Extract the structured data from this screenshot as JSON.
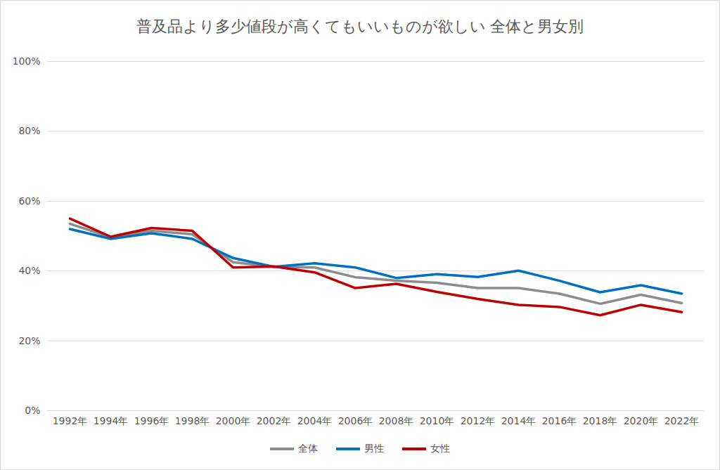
{
  "chart_data": {
    "type": "line",
    "title": "普及品より多少値段が高くてもいいものが欲しい 全体と男女別",
    "categories": [
      "1992年",
      "1994年",
      "1996年",
      "1998年",
      "2000年",
      "2002年",
      "2004年",
      "2006年",
      "2008年",
      "2010年",
      "2012年",
      "2014年",
      "2016年",
      "2018年",
      "2020年",
      "2022年"
    ],
    "series": [
      {
        "name": "全体",
        "color": "#8c8c8c",
        "values": [
          53.5,
          49.7,
          51.5,
          50.5,
          42.5,
          41.2,
          41.0,
          38.2,
          37.2,
          36.6,
          35.1,
          35.1,
          33.5,
          30.6,
          33.2,
          30.8
        ]
      },
      {
        "name": "男性",
        "color": "#0070c0",
        "values": [
          52.0,
          49.2,
          50.8,
          49.2,
          43.7,
          41.2,
          42.2,
          41.0,
          38.0,
          39.1,
          38.3,
          40.1,
          37.2,
          33.9,
          35.9,
          33.5
        ]
      },
      {
        "name": "女性",
        "color": "#c00000",
        "values": [
          55.0,
          49.8,
          52.3,
          51.5,
          41.0,
          41.3,
          39.6,
          35.1,
          36.3,
          34.0,
          32.0,
          30.3,
          29.7,
          27.3,
          30.3,
          28.2
        ]
      }
    ],
    "ylim": [
      0,
      100
    ],
    "yticks": [
      {
        "value": 0,
        "label": "0%"
      },
      {
        "value": 20,
        "label": "20%"
      },
      {
        "value": 40,
        "label": "40%"
      },
      {
        "value": 60,
        "label": "60%"
      },
      {
        "value": 80,
        "label": "80%"
      },
      {
        "value": 100,
        "label": "100%"
      }
    ],
    "grid": true,
    "legend": "bottom"
  }
}
